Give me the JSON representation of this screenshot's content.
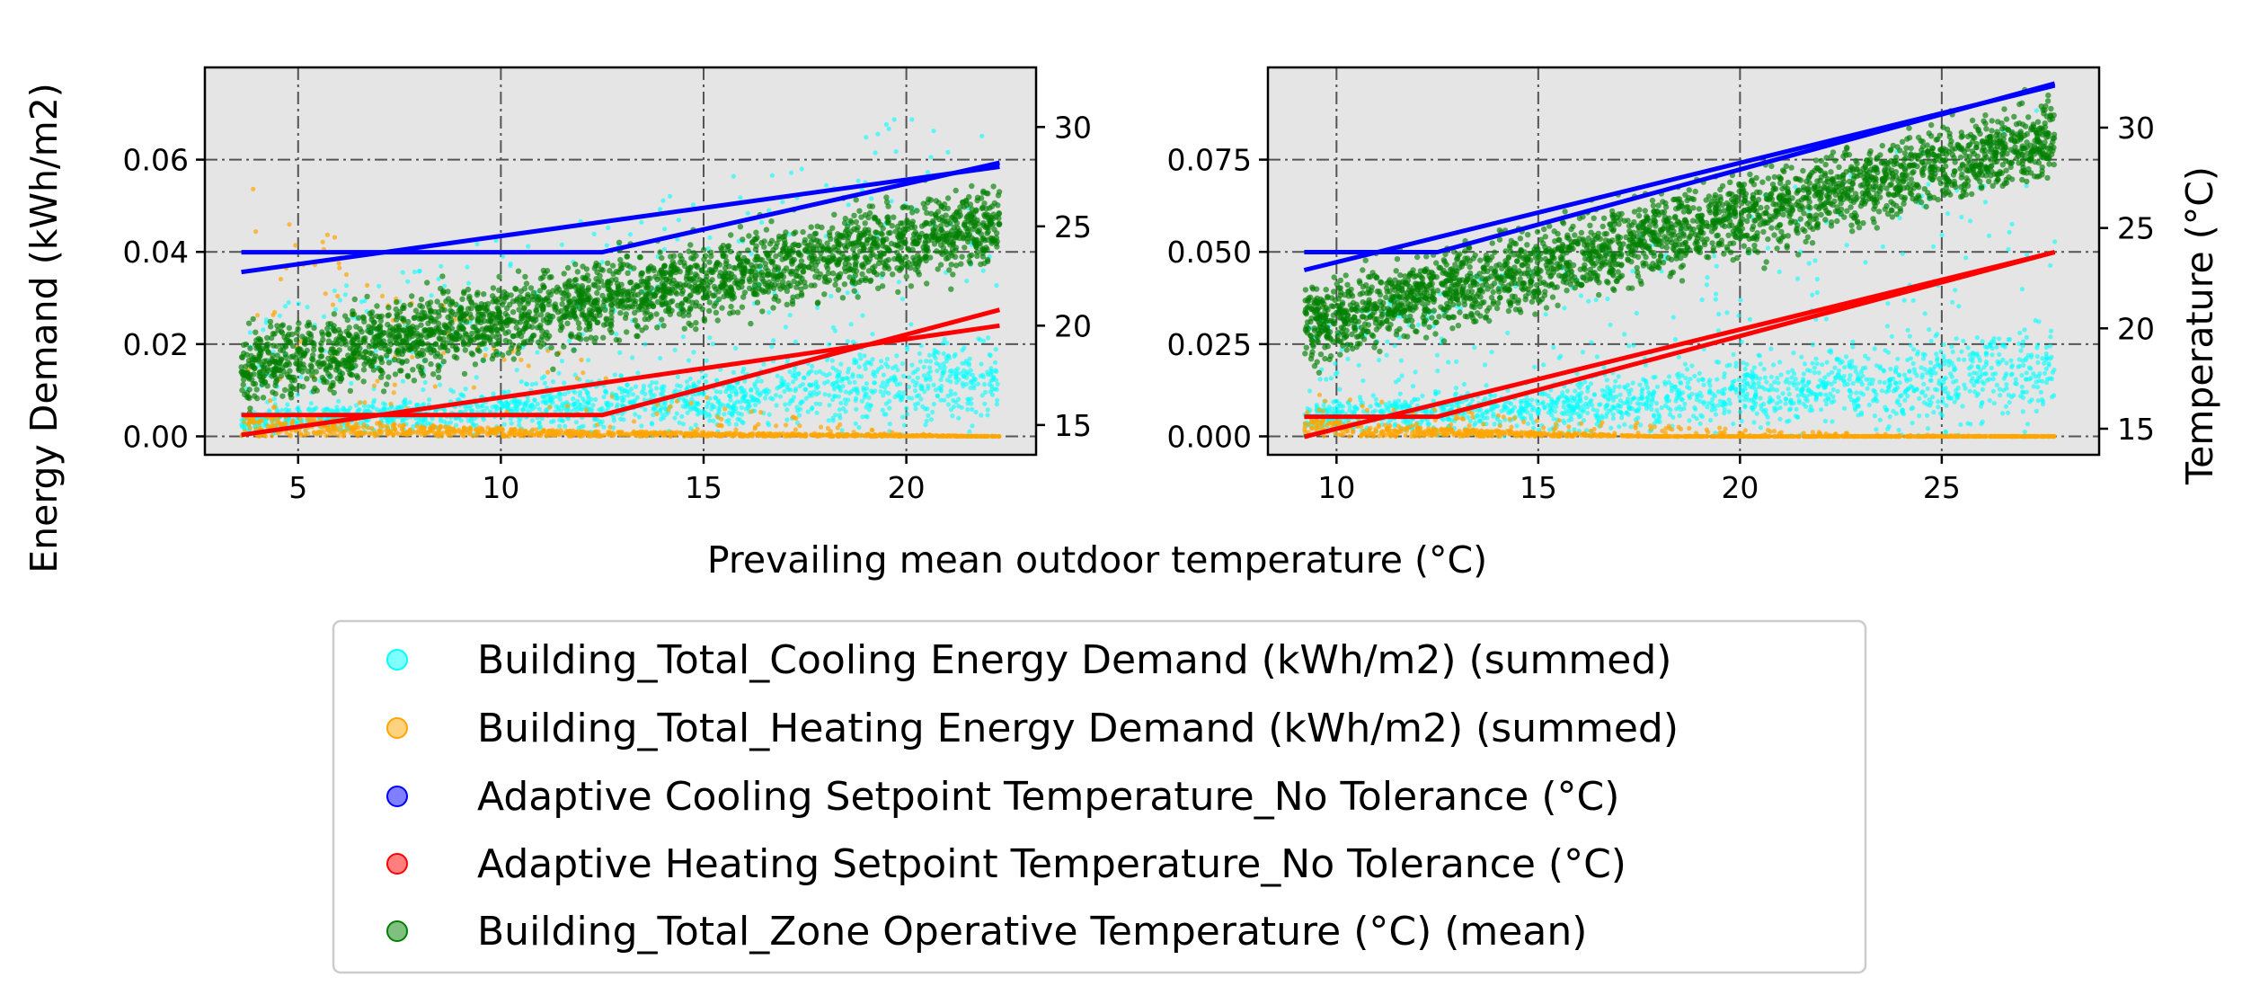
{
  "figure": {
    "ylabel_left": "Energy Demand (kWh/m2)",
    "ylabel_right": "Temperature (°C)",
    "xlabel": "Prevailing mean outdoor temperature (°C)"
  },
  "colors": {
    "cooling_demand": "#00ffff",
    "heating_demand": "#ffa500",
    "cooling_setpoint": "#0000ff",
    "heating_setpoint": "#ff0000",
    "operative_temp": "#008000",
    "plot_bg": "#e5e5e5",
    "grid": "#555555"
  },
  "legend": [
    {
      "label": "Building_Total_Cooling Energy Demand (kWh/m2) (summed)",
      "color": "#00ffff"
    },
    {
      "label": "Building_Total_Heating Energy Demand (kWh/m2) (summed)",
      "color": "#ffa500"
    },
    {
      "label": "Adaptive Cooling Setpoint Temperature_No Tolerance (°C)",
      "color": "#0000ff"
    },
    {
      "label": "Adaptive Heating Setpoint Temperature_No Tolerance (°C)",
      "color": "#ff0000"
    },
    {
      "label": "Building_Total_Zone Operative Temperature (°C) (mean)",
      "color": "#008000"
    }
  ],
  "chart_data": [
    {
      "type": "scatter",
      "panel": "left",
      "xlim": [
        2.7,
        23.2
      ],
      "ylim_left": [
        -0.004,
        0.08
      ],
      "ylim_right": [
        13.5,
        33.0
      ],
      "xticks": [
        5,
        10,
        15,
        20
      ],
      "yticks_left": [
        "0.00",
        "0.02",
        "0.04",
        "0.06"
      ],
      "yticks_right": [
        15,
        20,
        25,
        30
      ],
      "grid": true,
      "x_range": [
        3.6,
        22.3
      ],
      "series": [
        {
          "name": "Building_Total_Cooling Energy Demand (kWh/m2) (summed)",
          "axis": "left",
          "typical": [
            [
              3.6,
              0.003
            ],
            [
              10,
              0.006
            ],
            [
              15,
              0.008
            ],
            [
              20,
              0.012
            ],
            [
              22.3,
              0.013
            ]
          ],
          "peak_max": 0.076
        },
        {
          "name": "Building_Total_Heating Energy Demand (kWh/m2) (summed)",
          "axis": "left",
          "typical": [
            [
              3.6,
              0.004
            ],
            [
              8,
              0.002
            ],
            [
              12,
              0.001
            ],
            [
              22.3,
              0.0
            ]
          ],
          "peak_max": 0.058
        },
        {
          "name": "Adaptive Cooling Setpoint Temperature_No Tolerance (°C)",
          "axis": "right",
          "lines": [
            [
              [
                3.6,
                23.7
              ],
              [
                12.5,
                23.7
              ],
              [
                22.3,
                28.2
              ]
            ],
            [
              [
                3.6,
                22.7
              ],
              [
                22.3,
                28.0
              ]
            ]
          ]
        },
        {
          "name": "Adaptive Heating Setpoint Temperature_No Tolerance (°C)",
          "axis": "right",
          "lines": [
            [
              [
                3.6,
                15.5
              ],
              [
                12.5,
                15.5
              ],
              [
                22.3,
                20.8
              ]
            ],
            [
              [
                3.6,
                14.5
              ],
              [
                22.3,
                20.0
              ]
            ]
          ]
        },
        {
          "name": "Building_Total_Zone Operative Temperature (°C) (mean)",
          "axis": "right",
          "trend": [
            [
              3.6,
              17.8
            ],
            [
              22.3,
              25.2
            ]
          ],
          "spread": 1.8
        }
      ]
    },
    {
      "type": "scatter",
      "panel": "right",
      "xlim": [
        8.3,
        28.9
      ],
      "ylim_left": [
        -0.005,
        0.1
      ],
      "ylim_right": [
        13.7,
        33.0
      ],
      "xticks": [
        10,
        15,
        20,
        25
      ],
      "yticks_left": [
        "0.000",
        "0.025",
        "0.050",
        "0.075"
      ],
      "yticks_right": [
        15,
        20,
        25,
        30
      ],
      "grid": true,
      "x_range": [
        9.2,
        27.8
      ],
      "series": [
        {
          "name": "Building_Total_Cooling Energy Demand (kWh/m2) (summed)",
          "axis": "left",
          "typical": [
            [
              9.2,
              0.005
            ],
            [
              15,
              0.008
            ],
            [
              20,
              0.012
            ],
            [
              25,
              0.015
            ],
            [
              27.8,
              0.02
            ]
          ],
          "peak_max": 0.09
        },
        {
          "name": "Building_Total_Heating Energy Demand (kWh/m2) (summed)",
          "axis": "left",
          "typical": [
            [
              9.2,
              0.004
            ],
            [
              12,
              0.002
            ],
            [
              18,
              0.0
            ],
            [
              27.8,
              0.0
            ]
          ],
          "peak_max": 0.012
        },
        {
          "name": "Adaptive Cooling Setpoint Temperature_No Tolerance (°C)",
          "axis": "right",
          "lines": [
            [
              [
                9.2,
                23.8
              ],
              [
                12.5,
                23.8
              ],
              [
                27.8,
                32.2
              ]
            ],
            [
              [
                9.2,
                22.9
              ],
              [
                27.8,
                32.1
              ]
            ]
          ]
        },
        {
          "name": "Adaptive Heating Setpoint Temperature_No Tolerance (°C)",
          "axis": "right",
          "lines": [
            [
              [
                9.2,
                15.6
              ],
              [
                12.5,
                15.6
              ],
              [
                27.8,
                23.8
              ]
            ],
            [
              [
                9.2,
                14.6
              ],
              [
                27.8,
                23.8
              ]
            ]
          ]
        },
        {
          "name": "Building_Total_Zone Operative Temperature (°C) (mean)",
          "axis": "right",
          "trend": [
            [
              9.2,
              20.2
            ],
            [
              27.8,
              29.5
            ]
          ],
          "spread": 1.8
        }
      ]
    }
  ]
}
